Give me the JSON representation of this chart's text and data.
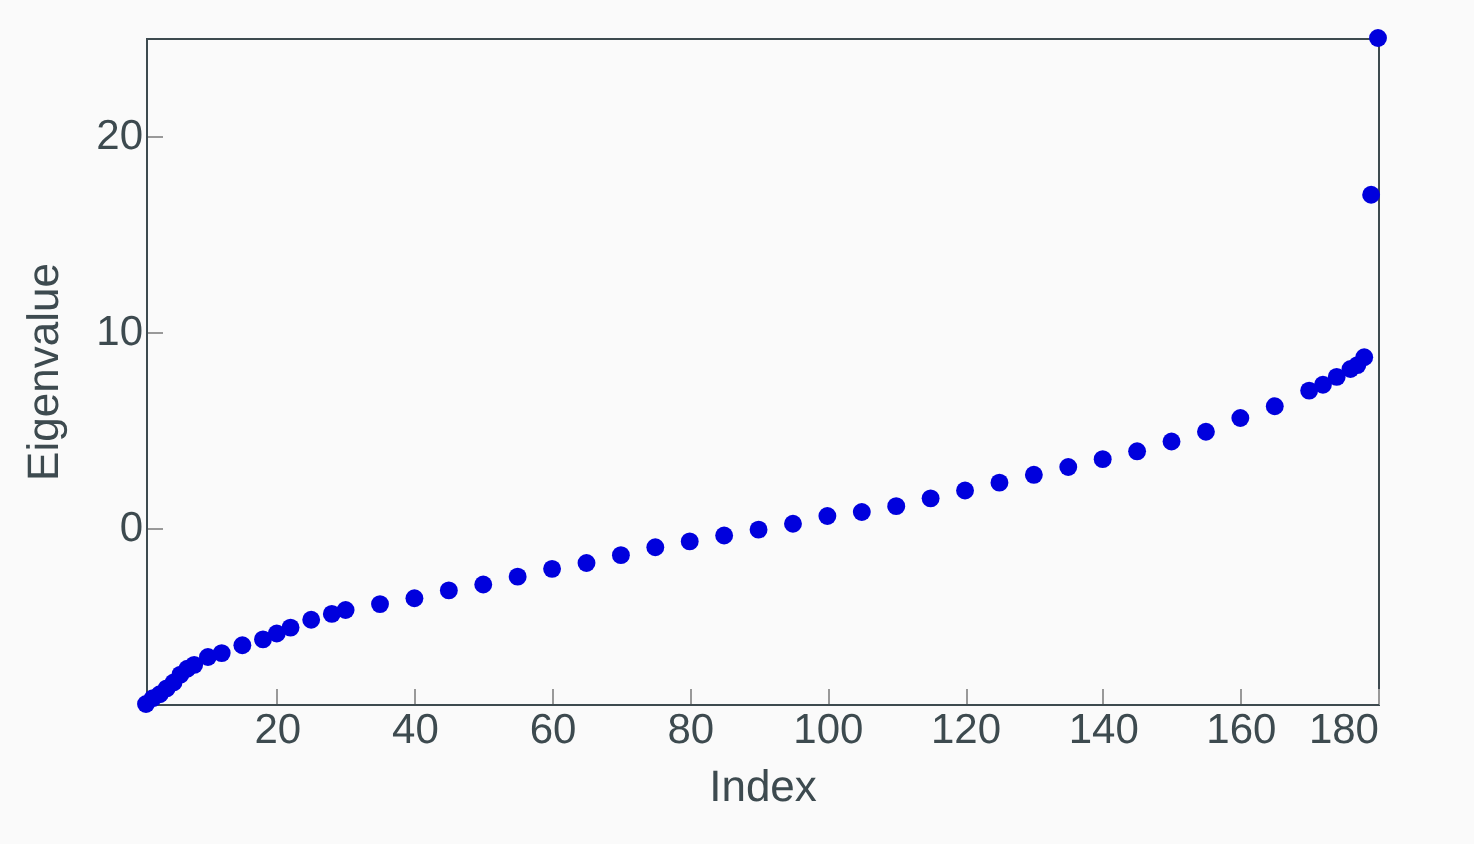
{
  "chart_data": {
    "type": "scatter",
    "xlabel": "Index",
    "ylabel": "Eigenvalue",
    "marker": "circle",
    "xlim": [
      1,
      180
    ],
    "ylim": [
      -9,
      25
    ],
    "xticks": [
      20,
      40,
      60,
      80,
      100,
      120,
      140,
      160,
      180
    ],
    "yticks": [
      0,
      10,
      20
    ],
    "grid": false,
    "series": [
      {
        "color": "#0000dd",
        "x": [
          1,
          2,
          3,
          4,
          5,
          6,
          7,
          8,
          10,
          12,
          15,
          18,
          20,
          22,
          25,
          28,
          30,
          35,
          40,
          45,
          50,
          55,
          60,
          65,
          70,
          75,
          80,
          85,
          90,
          95,
          100,
          105,
          110,
          115,
          120,
          125,
          130,
          135,
          140,
          145,
          150,
          155,
          160,
          165,
          170,
          172,
          174,
          176,
          177,
          178,
          179,
          180
        ],
        "values": [
          -9.0,
          -8.7,
          -8.5,
          -8.2,
          -7.9,
          -7.5,
          -7.2,
          -7.0,
          -6.6,
          -6.4,
          -6.0,
          -5.7,
          -5.4,
          -5.1,
          -4.7,
          -4.4,
          -4.2,
          -3.9,
          -3.6,
          -3.2,
          -2.9,
          -2.5,
          -2.1,
          -1.8,
          -1.4,
          -1.0,
          -0.7,
          -0.4,
          -0.1,
          0.2,
          0.6,
          0.8,
          1.1,
          1.5,
          1.9,
          2.3,
          2.7,
          3.1,
          3.5,
          3.9,
          4.4,
          4.9,
          5.6,
          6.2,
          7.0,
          7.3,
          7.7,
          8.1,
          8.3,
          8.7,
          17,
          25
        ]
      }
    ]
  }
}
